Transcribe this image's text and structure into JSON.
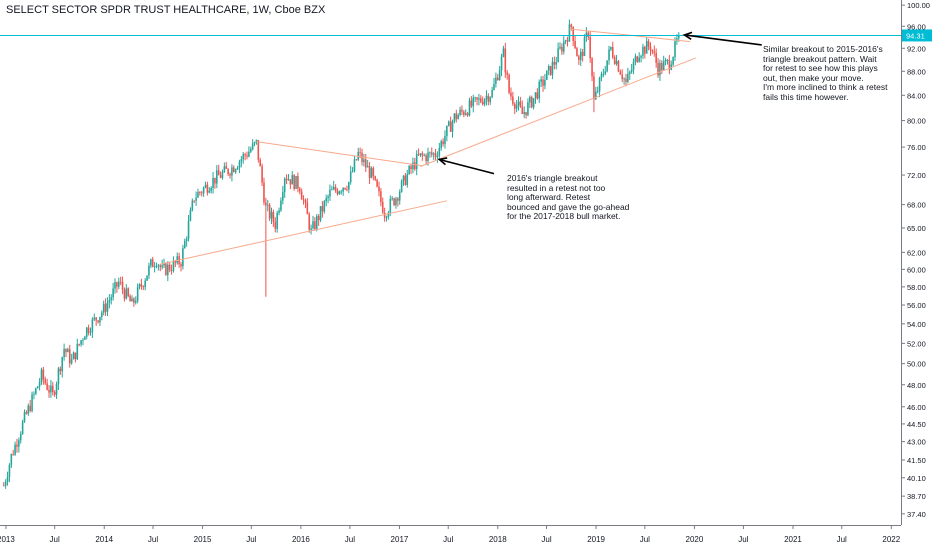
{
  "header": {
    "title": "SELECT SECTOR SPDR TRUST HEALTHCARE, 1W, Cboe BZX"
  },
  "chart_data": {
    "type": "candlestick",
    "y_scale": "log",
    "ylim": [
      36.6,
      101.0
    ],
    "y_ticks": [
      "100.00",
      "96.00",
      "92.00",
      "88.00",
      "84.00",
      "80.00",
      "76.00",
      "72.00",
      "68.00",
      "65.00",
      "62.00",
      "60.00",
      "58.00",
      "56.00",
      "54.00",
      "52.00",
      "50.00",
      "48.00",
      "46.00",
      "44.50",
      "43.00",
      "41.50",
      "40.10",
      "38.70",
      "37.40"
    ],
    "x_ticks": [
      {
        "label": "2013",
        "date": "2013-01-01"
      },
      {
        "label": "Jul",
        "date": "2013-07-01"
      },
      {
        "label": "2014",
        "date": "2014-01-01"
      },
      {
        "label": "Jul",
        "date": "2014-07-01"
      },
      {
        "label": "2015",
        "date": "2015-01-01"
      },
      {
        "label": "Jul",
        "date": "2015-07-01"
      },
      {
        "label": "2016",
        "date": "2016-01-01"
      },
      {
        "label": "Jul",
        "date": "2016-07-01"
      },
      {
        "label": "2017",
        "date": "2017-01-01"
      },
      {
        "label": "Jul",
        "date": "2017-07-01"
      },
      {
        "label": "2018",
        "date": "2018-01-01"
      },
      {
        "label": "Jul",
        "date": "2018-07-01"
      },
      {
        "label": "2019",
        "date": "2019-01-01"
      },
      {
        "label": "Jul",
        "date": "2019-07-01"
      },
      {
        "label": "2020",
        "date": "2020-01-01"
      },
      {
        "label": "Jul",
        "date": "2020-07-01"
      },
      {
        "label": "2021",
        "date": "2021-01-01"
      },
      {
        "label": "Jul",
        "date": "2021-07-01"
      },
      {
        "label": "2022",
        "date": "2022-01-01"
      }
    ],
    "price_path": [
      {
        "date": "2012-12-24",
        "close": 39.5
      },
      {
        "date": "2013-01-21",
        "close": 41.8
      },
      {
        "date": "2013-03-04",
        "close": 44.5
      },
      {
        "date": "2013-05-13",
        "close": 48.8
      },
      {
        "date": "2013-06-24",
        "close": 47.0
      },
      {
        "date": "2013-08-05",
        "close": 51.5
      },
      {
        "date": "2013-09-02",
        "close": 50.2
      },
      {
        "date": "2013-10-21",
        "close": 53.2
      },
      {
        "date": "2013-12-30",
        "close": 55.5
      },
      {
        "date": "2014-02-24",
        "close": 58.5
      },
      {
        "date": "2014-04-14",
        "close": 56.0
      },
      {
        "date": "2014-06-23",
        "close": 60.5
      },
      {
        "date": "2014-07-14",
        "close": 61.2
      },
      {
        "date": "2014-08-04",
        "close": 59.8
      },
      {
        "date": "2014-10-13",
        "close": 61.0
      },
      {
        "date": "2014-12-01",
        "close": 69.0
      },
      {
        "date": "2015-02-16",
        "close": 71.5
      },
      {
        "date": "2015-04-20",
        "close": 73.0
      },
      {
        "date": "2015-07-20",
        "close": 76.5
      },
      {
        "date": "2015-08-24",
        "close": 67.5
      },
      {
        "date": "2015-09-28",
        "close": 65.5
      },
      {
        "date": "2015-11-02",
        "close": 72.0
      },
      {
        "date": "2015-12-28",
        "close": 70.5
      },
      {
        "date": "2016-02-08",
        "close": 64.5
      },
      {
        "date": "2016-04-18",
        "close": 69.5
      },
      {
        "date": "2016-06-27",
        "close": 71.0
      },
      {
        "date": "2016-08-01",
        "close": 75.0
      },
      {
        "date": "2016-09-19",
        "close": 72.0
      },
      {
        "date": "2016-11-07",
        "close": 67.0
      },
      {
        "date": "2016-12-19",
        "close": 69.0
      },
      {
        "date": "2017-01-30",
        "close": 72.0
      },
      {
        "date": "2017-03-13",
        "close": 74.5
      },
      {
        "date": "2017-05-15",
        "close": 75.0
      },
      {
        "date": "2017-07-24",
        "close": 80.5
      },
      {
        "date": "2017-10-02",
        "close": 82.5
      },
      {
        "date": "2017-12-11",
        "close": 84.5
      },
      {
        "date": "2018-01-22",
        "close": 91.0
      },
      {
        "date": "2018-02-12",
        "close": 84.5
      },
      {
        "date": "2018-04-02",
        "close": 81.0
      },
      {
        "date": "2018-05-14",
        "close": 83.5
      },
      {
        "date": "2018-07-30",
        "close": 89.5
      },
      {
        "date": "2018-10-01",
        "close": 96.0
      },
      {
        "date": "2018-10-29",
        "close": 89.5
      },
      {
        "date": "2018-12-03",
        "close": 95.0
      },
      {
        "date": "2018-12-24",
        "close": 83.0
      },
      {
        "date": "2019-02-25",
        "close": 92.0
      },
      {
        "date": "2019-04-22",
        "close": 86.0
      },
      {
        "date": "2019-06-10",
        "close": 91.5
      },
      {
        "date": "2019-07-22",
        "close": 92.5
      },
      {
        "date": "2019-08-19",
        "close": 88.5
      },
      {
        "date": "2019-09-30",
        "close": 89.5
      },
      {
        "date": "2019-10-21",
        "close": 92.0
      },
      {
        "date": "2019-11-04",
        "close": 94.3
      }
    ],
    "wicks": [
      {
        "date": "2015-08-24",
        "low": 56.9
      },
      {
        "date": "2018-12-24",
        "low": 81.3
      },
      {
        "date": "2018-10-01",
        "high": 96.5
      }
    ],
    "price_line": {
      "value": 94.31,
      "label": "94.31",
      "color": "#00bcd4"
    },
    "trendlines": [
      {
        "name": "2015-2016 triangle upper",
        "from": {
          "date": "2015-07-20",
          "value": 76.8
        },
        "to": {
          "date": "2017-03-27",
          "value": 73.3
        },
        "color": "#f7a98b"
      },
      {
        "name": "2015-2016 triangle lower",
        "from": {
          "date": "2014-07-28",
          "value": 60.6
        },
        "to": {
          "date": "2017-06-26",
          "value": 68.5
        },
        "color": "#f7a98b"
      },
      {
        "name": "2018-2019 triangle upper",
        "from": {
          "date": "2018-09-24",
          "value": 95.5
        },
        "to": {
          "date": "2019-12-16",
          "value": 93.2
        },
        "color": "#f7a98b"
      },
      {
        "name": "2018-2019 triangle lower",
        "from": {
          "date": "2017-03-20",
          "value": 73.2
        },
        "to": {
          "date": "2020-01-06",
          "value": 90.3
        },
        "color": "#f7a98b"
      }
    ],
    "arrows": [
      {
        "name": "arrow-2016",
        "from": {
          "date": "2017-12-18",
          "value": 72.2
        },
        "to": {
          "date": "2017-05-29",
          "value": 74.2
        }
      },
      {
        "name": "arrow-2019",
        "from": {
          "date": "2020-09-07",
          "value": 92.6
        },
        "to": {
          "date": "2019-11-25",
          "value": 94.4
        }
      }
    ],
    "annotations": [
      {
        "name": "note-2016",
        "text": "2016's triangle breakout\nresulted in a retest not too\nlong afterward. Retest\nbounced and gave the go-ahead\nfor the 2017-2018 bull market."
      },
      {
        "name": "note-2019",
        "text": "Similar breakout to 2015-2016's\ntriangle breakout pattern. Wait\nfor retest to see how this plays\nout, then make your  move.\nI'm more inclined to think a retest\nfails this time however."
      }
    ],
    "colors": {
      "up": "#26a69a",
      "down": "#ef5350",
      "trendline": "#f7a98b",
      "price_line": "#00bcd4",
      "axis": "#787b86",
      "grid": "#e0e3eb"
    },
    "grid": false,
    "legend": "none"
  }
}
